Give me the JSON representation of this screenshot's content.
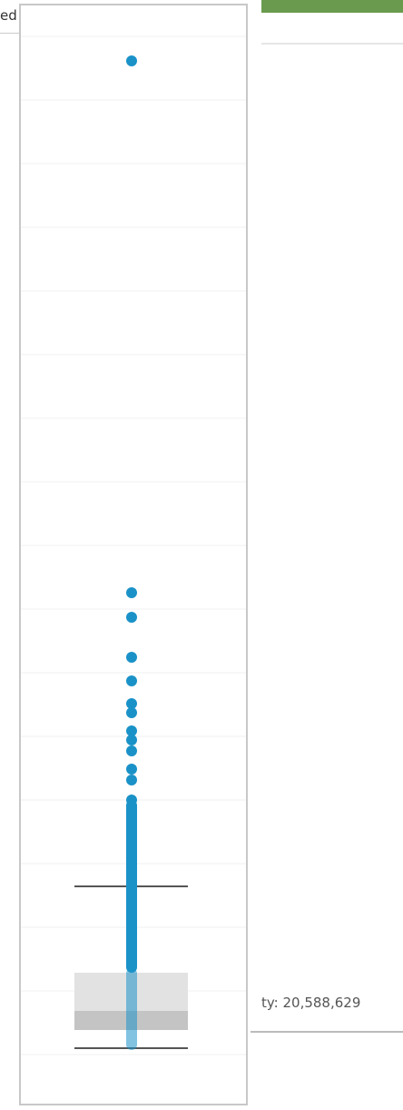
{
  "header_fragment": "ed",
  "status_fragment": "ty: 20,588,629"
}
